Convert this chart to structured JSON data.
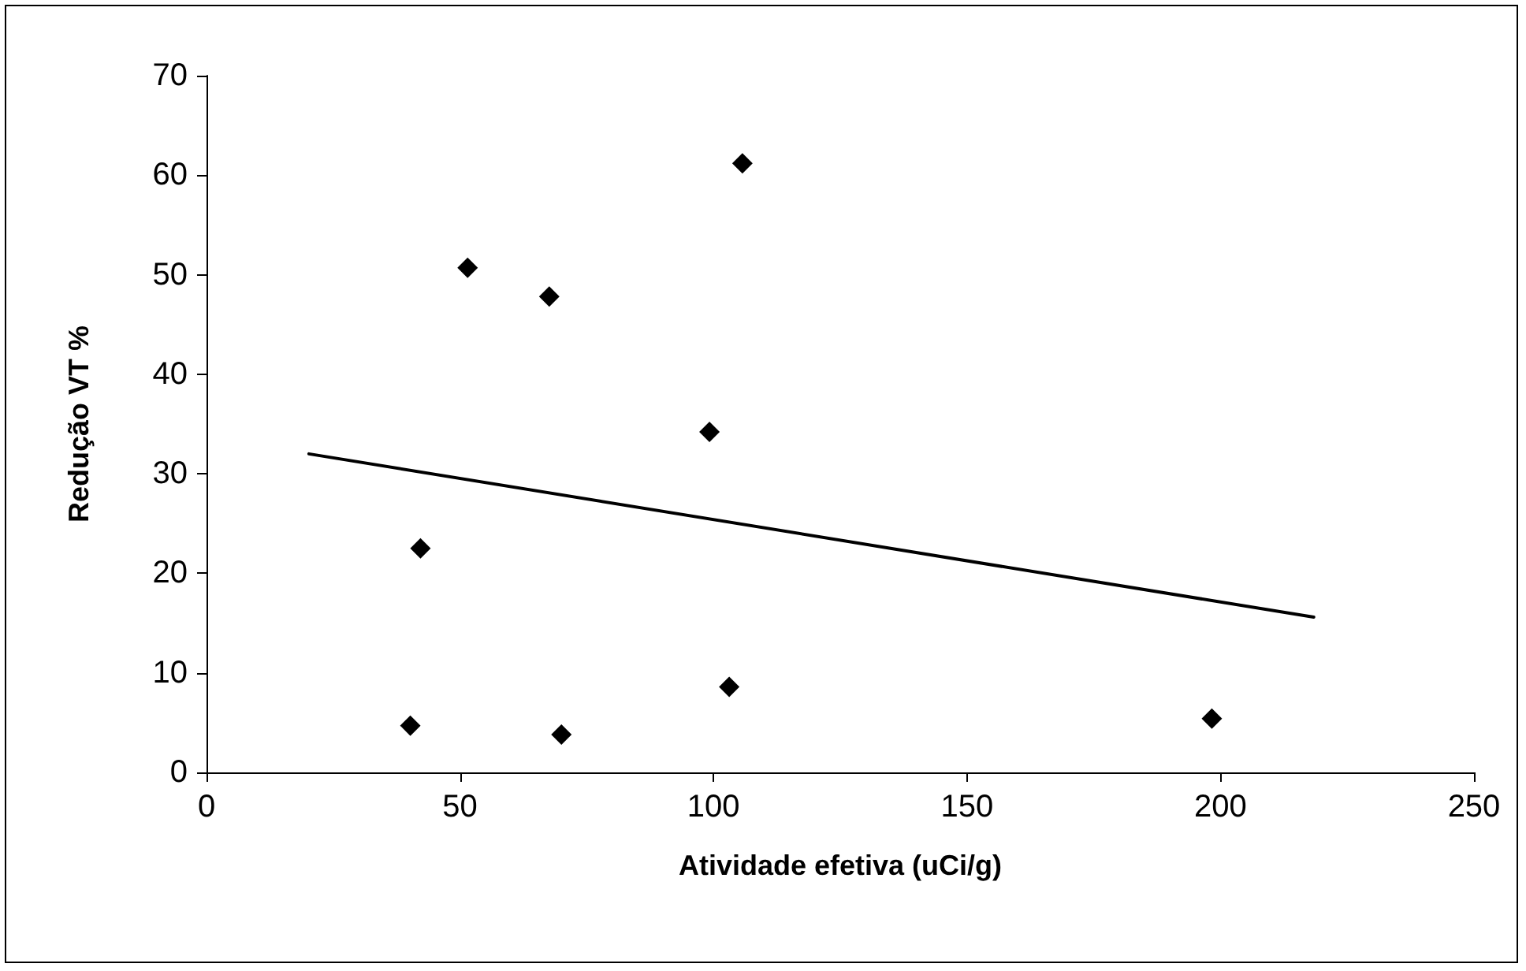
{
  "chart_data": {
    "type": "scatter",
    "xlabel": "Atividade efetiva (uCi/g)",
    "ylabel": "Redução VT %",
    "xlim": [
      0,
      250
    ],
    "xticks": [
      0,
      50,
      100,
      150,
      200,
      250
    ],
    "ylim": [
      0,
      70
    ],
    "yticks": [
      0,
      10,
      20,
      30,
      40,
      50,
      60,
      70
    ],
    "grid": false,
    "marker": "diamond",
    "series": [
      {
        "color": "#000000",
        "x": [
          51.5,
          67.6,
          105.7,
          99.2,
          42.2,
          40.2,
          70.0,
          103.1,
          198.3
        ],
        "values": [
          50.7,
          47.8,
          61.2,
          34.2,
          22.5,
          4.7,
          3.8,
          8.6,
          5.4
        ]
      },
      {
        "type": "line",
        "color": "#000000",
        "marker": "none",
        "line_style": "solid",
        "x": [
          20.2,
          218.4
        ],
        "values": [
          32.0,
          15.6
        ]
      }
    ]
  }
}
